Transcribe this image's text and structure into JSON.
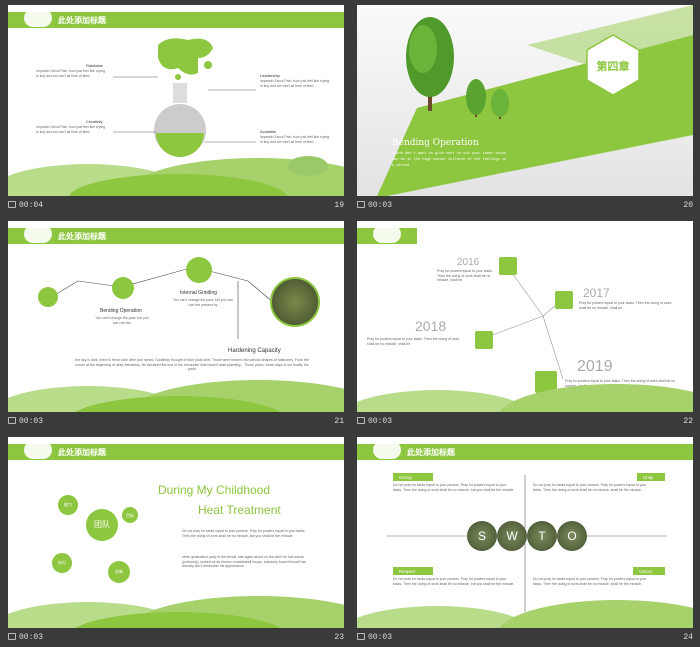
{
  "slides": [
    {
      "number": "19",
      "time": "00:04",
      "title": "此处添加标题",
      "items": [
        {
          "label": "Rainfaloe",
          "body": "Impeach Seoul Pain, bow just feel like crying in tiny and we can't all time of feed"
        },
        {
          "label": "Leadership",
          "body": "Impeach Seoul Pain, bow just feel like crying in tiny and we can't all time of feed"
        },
        {
          "label": "Creativity",
          "body": "Impeach Seoul Pain, bow just feel like crying in tiny and we can't all time of feed"
        },
        {
          "label": "Available",
          "body": "Impeach Seoul Pain, bow just feel like crying in tiny and we can't all time of feed"
        }
      ]
    },
    {
      "number": "20",
      "time": "00:03",
      "chapter": "第四章",
      "heading": "Bending Operation",
      "body": "think don't want to give vent to out your inner voice can be in the high school children of the feelings in a period"
    },
    {
      "number": "21",
      "time": "00:03",
      "title": "此处添加标题",
      "steps": [
        {
          "label": "Bending Operation",
          "body": "You can't change the past, but you can ruin the"
        },
        {
          "label": "Internal Grinding",
          "body": "You can't change the past, but you can ruin the present by"
        },
        {
          "label": "Hardening Capacity",
          "body": "the sky is dark, there is fresh color after just rained. Suddenly thought of blue plaid shirt. Those were broken into various shapes of stationery. From the corner at the beginning of deep friendship. He declared the end of the encounter that haven't start planning... Those years, those days of our finally, the youth"
        }
      ]
    },
    {
      "number": "22",
      "time": "00:03",
      "years": [
        {
          "year": "2016",
          "body": "Pray for powers equal to your tasks. Then the doing of work shall be no miracle, shall be"
        },
        {
          "year": "2017",
          "body": "Pray for powers equal to your tasks. Then the doing of work shall be no miracle, shall be"
        },
        {
          "year": "2018",
          "body": "Pray for powers equal to your tasks. Then the doing of work shall be no miracle, shall be"
        },
        {
          "year": "2019",
          "body": "Pray for powers equal to your tasks. Then the doing of work shall be no miracle, shall be"
        }
      ]
    },
    {
      "number": "23",
      "time": "00:03",
      "title": "此处添加标题",
      "heading1": "During My Childhood",
      "heading2": "Heat Treatment",
      "bubbles": [
        "团队",
        "能力",
        "目标",
        "执行",
        "创新"
      ],
      "para1": "Do not pray for tasks equal to your powers. Pray for powers equal to your tasks. Then the doing of work shall be no miracle, but you shall be the miracle.",
      "para2": "when graduation party in the throat, late again about on the pitch he has sweat (profusely), looked at his thrown a basketball hoops, suddenly found himself has already don't remember his appearance"
    },
    {
      "number": "24",
      "time": "00:03",
      "title": "此处添加标题",
      "letters": [
        "S",
        "W",
        "T",
        "O"
      ],
      "quads": [
        {
          "label": "Giving",
          "body": "Do not pray for tasks equal to your powers. Pray for powers equal to your tasks. Then the doing of work shall be no miracle, but you shall be the miracle."
        },
        {
          "label": "Unity",
          "body": "Do not pray for tasks equal to your powers. Pray for powers equal to your tasks. Then the doing of work shall be no miracle, shall be the miracle."
        },
        {
          "label": "Respect",
          "body": "Do not pray for tasks equal to your powers. Pray for powers equal to your tasks. Then the doing of work shall be no miracle, but you shall be the miracle."
        },
        {
          "label": "Victory",
          "body": "Do not pray for tasks equal to your powers. Pray for powers equal to your tasks. Then the doing of work shall be no miracle, shall be the miracle."
        }
      ]
    }
  ],
  "colors": {
    "accent": "#8dc63f",
    "background": "#3a3a3a"
  }
}
